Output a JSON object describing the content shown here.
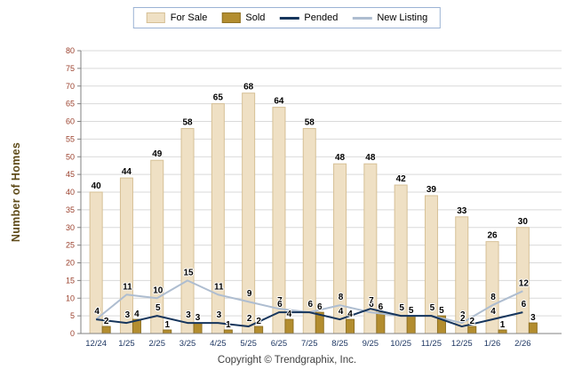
{
  "chart": {
    "ylabel": "Number of Homes",
    "copyright": "Copyright © Trendgraphix, Inc.",
    "colors": {
      "for_sale": "#efe0c4",
      "for_sale_border": "#d6c096",
      "sold": "#b38d2f",
      "sold_border": "#8f7124",
      "pended": "#16355c",
      "new_listing": "#aebdd0",
      "grid": "#d9d9d9",
      "axis": "#808080",
      "legend_border": "#9bb3d4",
      "y_tick_text": "#9a3f2b",
      "x_tick_text": "#1f3864",
      "axis_title_text": "#5e4a18"
    }
  },
  "chart_data": {
    "type": "bar",
    "title": "",
    "xlabel": "",
    "ylabel": "Number of Homes",
    "ylim": [
      0,
      80
    ],
    "ytick_step": 5,
    "grid": true,
    "legend_position": "top",
    "categories": [
      "12/24",
      "1/25",
      "2/25",
      "3/25",
      "4/25",
      "5/25",
      "6/25",
      "7/25",
      "8/25",
      "9/25",
      "10/25",
      "11/25",
      "12/25",
      "1/26",
      "2/26"
    ],
    "series": [
      {
        "name": "For Sale",
        "type": "bar",
        "values": [
          40,
          44,
          49,
          58,
          65,
          68,
          64,
          58,
          48,
          48,
          42,
          39,
          33,
          26,
          30
        ]
      },
      {
        "name": "Sold",
        "type": "bar",
        "values": [
          2,
          4,
          1,
          3,
          1,
          2,
          4,
          6,
          4,
          6,
          5,
          5,
          2,
          1,
          3
        ]
      },
      {
        "name": "Pended",
        "type": "line",
        "values": [
          4,
          3,
          5,
          3,
          3,
          2,
          6,
          6,
          4,
          7,
          5,
          5,
          2,
          4,
          6
        ]
      },
      {
        "name": "New Listing",
        "type": "line",
        "values": [
          4,
          11,
          10,
          15,
          11,
          9,
          7,
          6,
          8,
          6,
          5,
          5,
          3,
          8,
          12
        ]
      }
    ]
  }
}
